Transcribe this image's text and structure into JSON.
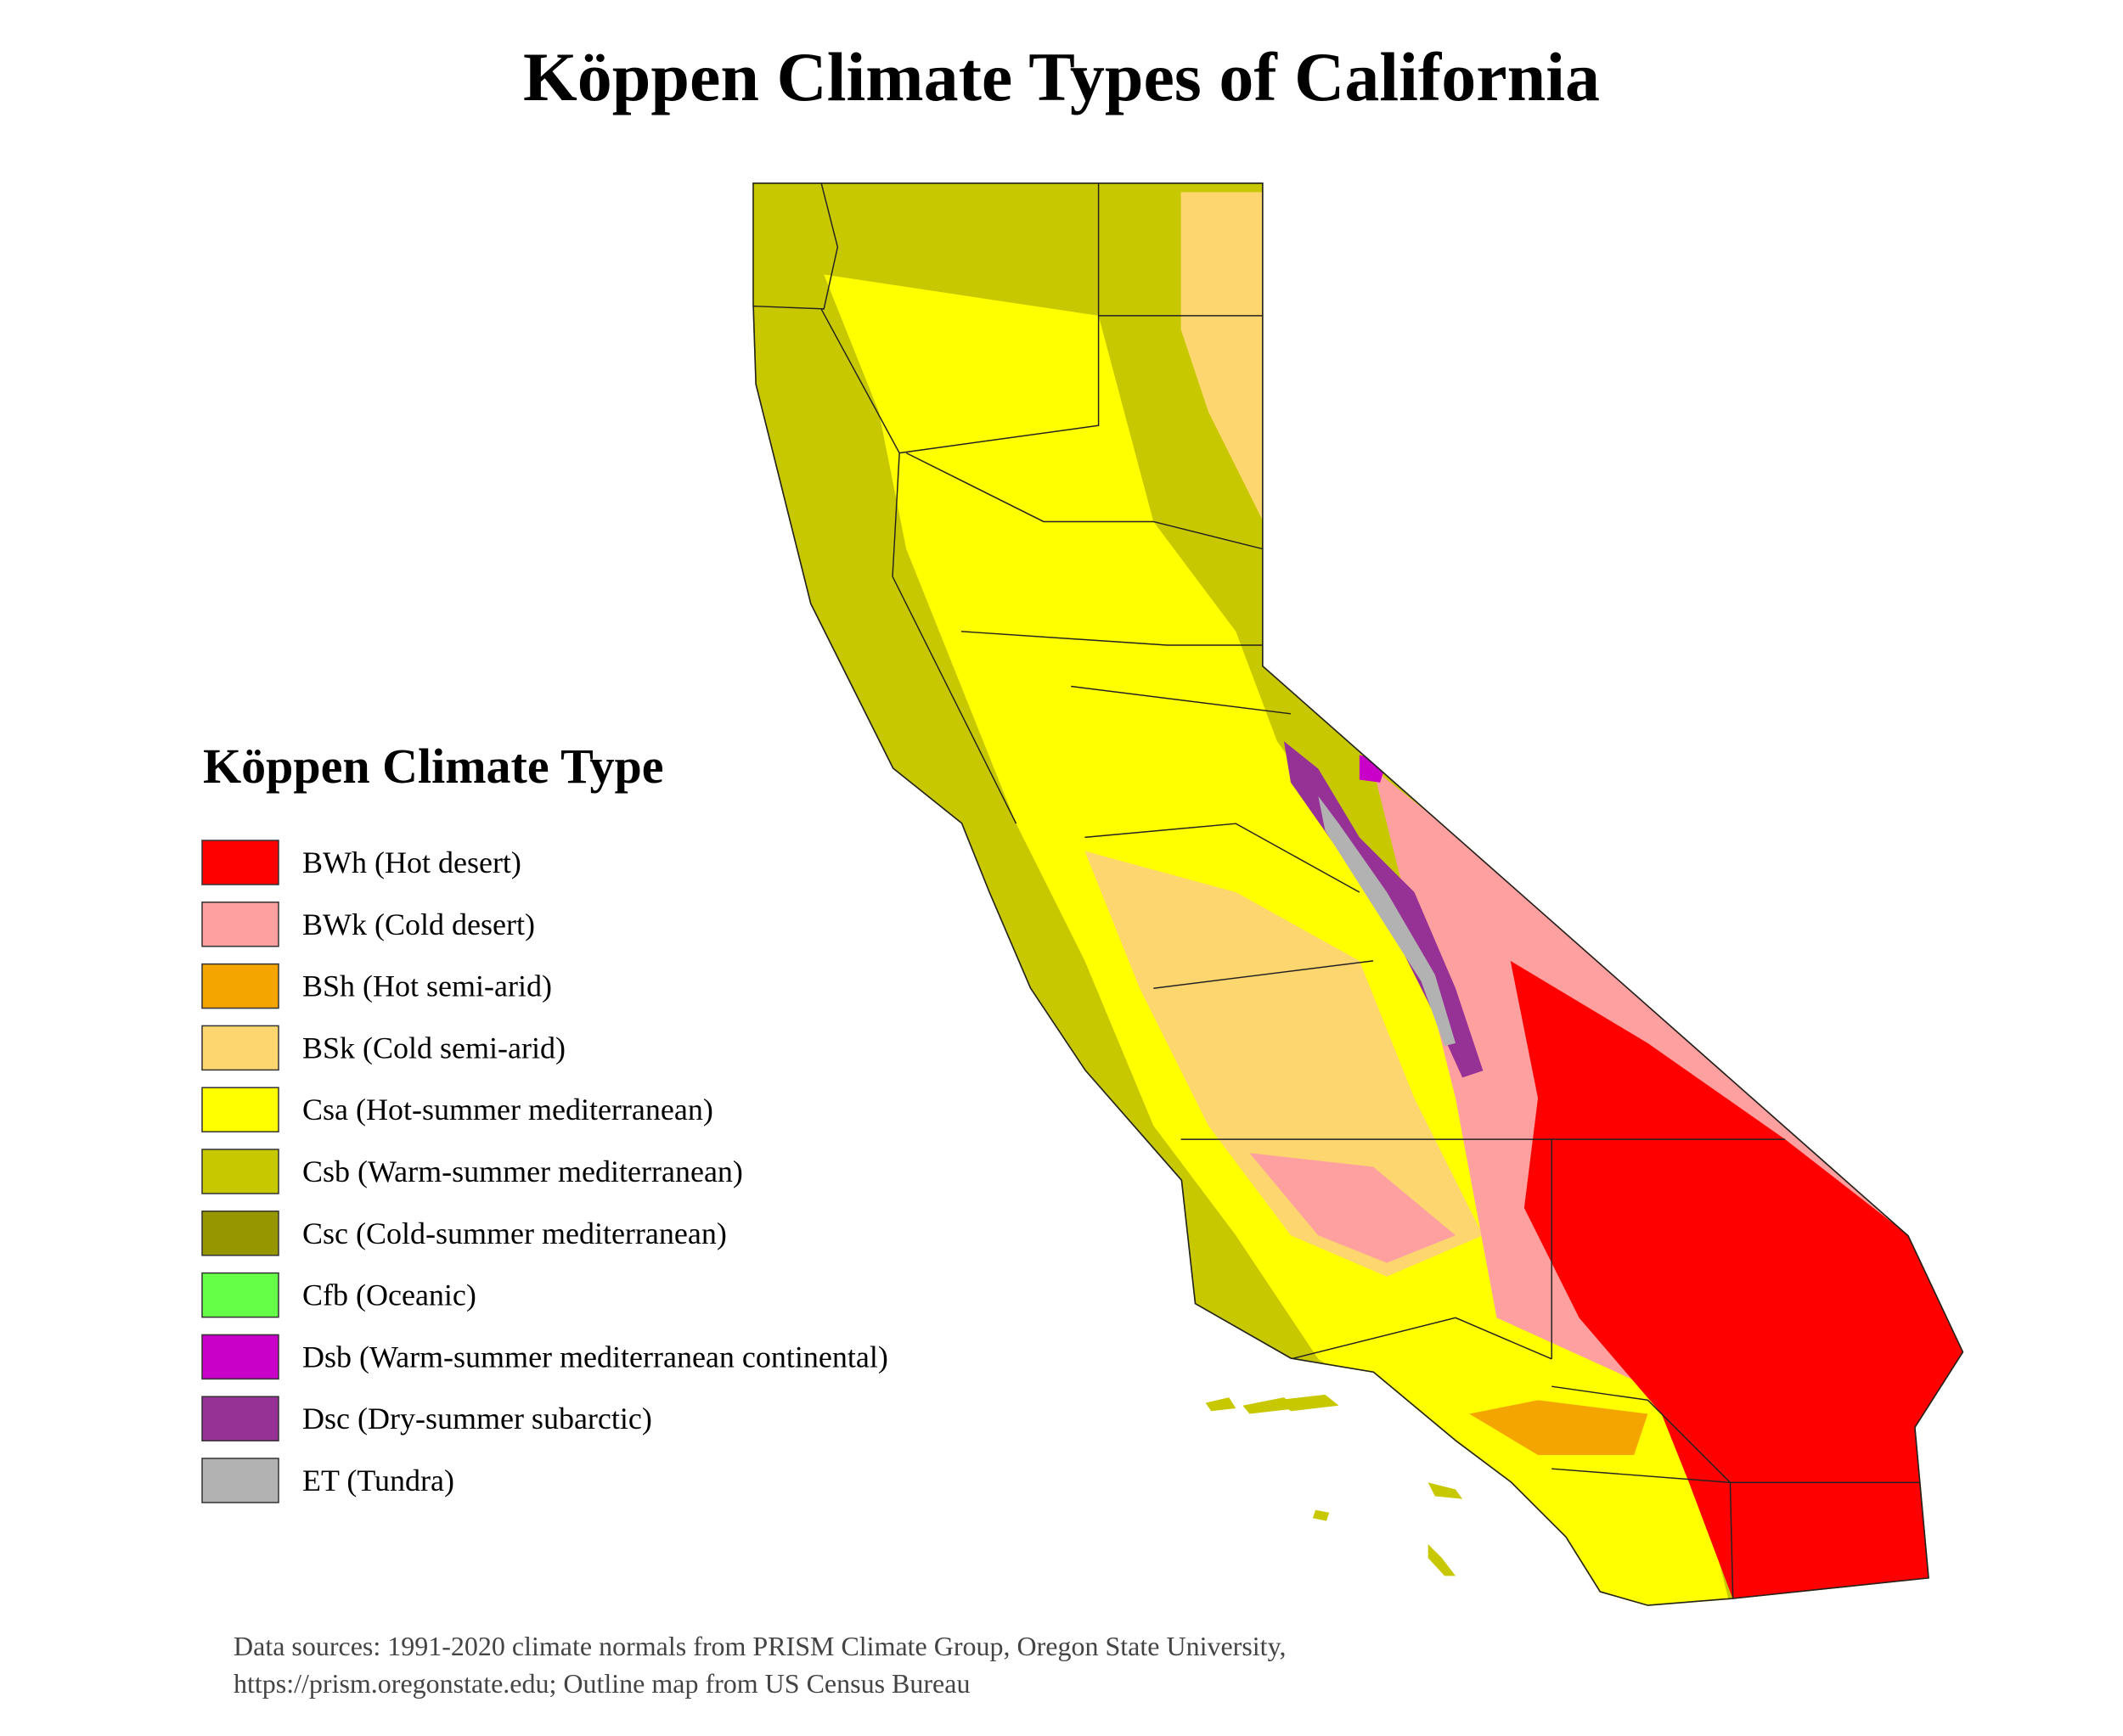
{
  "title": "Köppen Climate Types of California",
  "legend": {
    "title": "Köppen Climate Type",
    "items": [
      {
        "name": "BWh (Hot desert)",
        "color": "#ff0000"
      },
      {
        "name": "BWk (Cold desert)",
        "color": "#ffa0a0"
      },
      {
        "name": "BSh (Hot semi-arid)",
        "color": "#f5a500"
      },
      {
        "name": "BSk (Cold semi-arid)",
        "color": "#fdd66f"
      },
      {
        "name": "Csa (Hot-summer mediterranean)",
        "color": "#ffff00"
      },
      {
        "name": "Csb (Warm-summer mediterranean)",
        "color": "#c8c800"
      },
      {
        "name": "Csc (Cold-summer mediterranean)",
        "color": "#969600"
      },
      {
        "name": "Cfb (Oceanic)",
        "color": "#64ff46"
      },
      {
        "name": "Dsb (Warm-summer mediterranean continental)",
        "color": "#c800c8"
      },
      {
        "name": "Dsc (Dry-summer subarctic)",
        "color": "#963296"
      },
      {
        "name": "ET (Tundra)",
        "color": "#b2b2b2"
      }
    ]
  },
  "source": [
    "Data sources: 1991-2020 climate normals from PRISM Climate Group, Oregon State University,",
    "https://prism.oregonstate.edu; Outline map from US Census Bureau"
  ]
}
